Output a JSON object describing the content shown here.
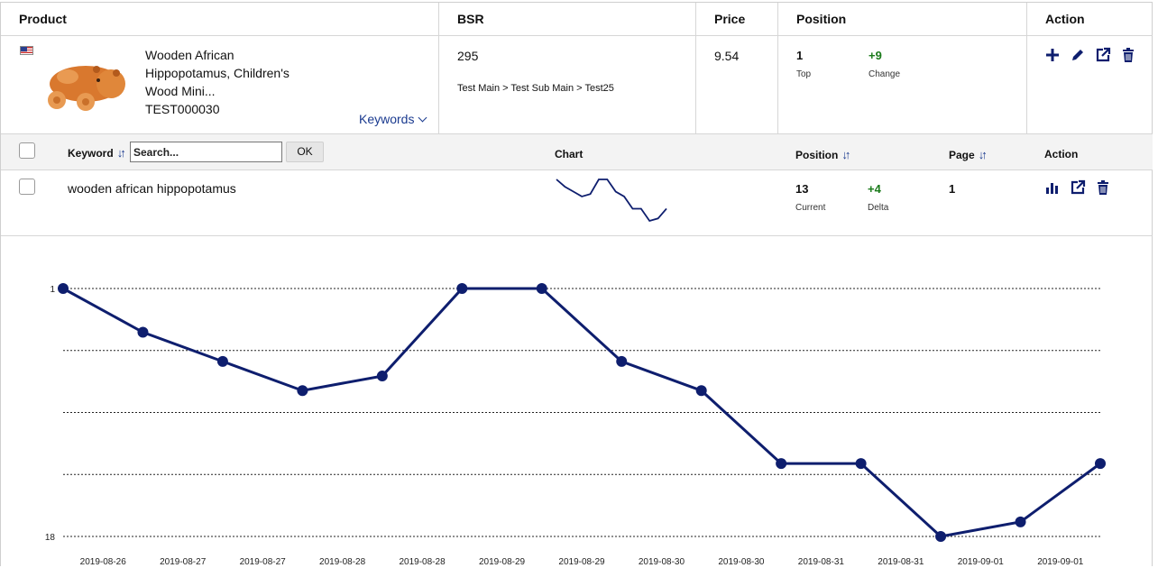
{
  "product_table": {
    "headers": {
      "product": "Product",
      "bsr": "BSR",
      "price": "Price",
      "position": "Position",
      "action": "Action"
    },
    "row": {
      "title_lines": [
        "Wooden African",
        "Hippopotamus, Children's",
        "Wood Mini...",
        "TEST000030"
      ],
      "keywords_link": "Keywords",
      "bsr": "295",
      "bsr_category": "Test Main > Test Sub Main > Test25",
      "price": "9.54",
      "position_value": "1",
      "position_label": "Top",
      "change_value": "+9",
      "change_label": "Change",
      "actions": [
        "plus-icon",
        "pencil-icon",
        "external-link-icon",
        "trash-icon"
      ]
    }
  },
  "keyword_table": {
    "headers": {
      "keyword": "Keyword",
      "chart": "Chart",
      "position": "Position",
      "page": "Page",
      "action": "Action"
    },
    "search_placeholder": "Search...",
    "ok_label": "OK",
    "rows": [
      {
        "keyword": "wooden african hippopotamus",
        "current": "13",
        "current_label": "Current",
        "delta": "+4",
        "delta_label": "Delta",
        "page": "1",
        "actions": [
          "bar-chart-icon",
          "external-link-icon",
          "trash-icon"
        ]
      }
    ]
  },
  "colors": {
    "accent": "#0e1e6e",
    "link": "#1a3a8f",
    "positive": "#1a7a1a"
  },
  "chart_data": {
    "type": "line",
    "x": [
      "2019-08-26",
      "2019-08-27",
      "2019-08-27",
      "2019-08-28",
      "2019-08-28",
      "2019-08-29",
      "2019-08-29",
      "2019-08-30",
      "2019-08-30",
      "2019-08-31",
      "2019-08-31",
      "2019-09-01",
      "2019-09-01",
      "2019-09-01"
    ],
    "series": [
      {
        "values": [
          1,
          4,
          6,
          8,
          7,
          1,
          1,
          6,
          8,
          13,
          13,
          18,
          17,
          13
        ]
      }
    ],
    "ylim": [
      1,
      18
    ],
    "y_inverted": true,
    "y_tick_labels": [
      "1",
      "18"
    ],
    "grid": true,
    "sparkline": [
      1,
      4,
      6,
      8,
      7,
      1,
      1,
      6,
      8,
      13,
      13,
      18,
      17,
      13
    ]
  }
}
